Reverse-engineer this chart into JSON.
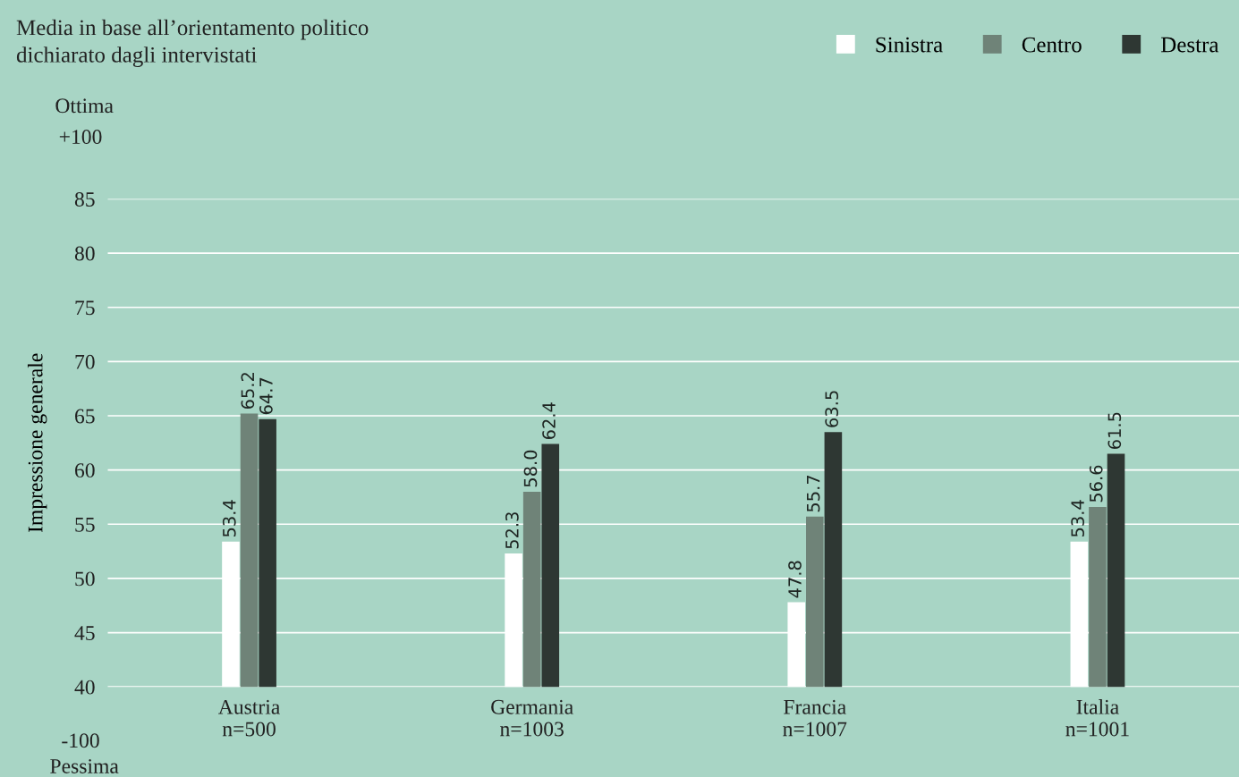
{
  "chart_data": {
    "type": "bar",
    "title": "Media in base all’orientamento politico",
    "subtitle": "dichiarato dagli intervistati",
    "ylabel": "Impressione generale",
    "categories": [
      "Austria\nn=500",
      "Germania\nn=1003",
      "Francia\nn=1007",
      "Italia\nn=1001"
    ],
    "series": [
      {
        "name": "Sinistra",
        "color": "#ffffff",
        "values": [
          53.4,
          52.3,
          47.8,
          53.4
        ],
        "value_labels": [
          "53.4",
          "52.3",
          "47.8",
          "53.4"
        ]
      },
      {
        "name": "Centro",
        "color": "#6f8378",
        "values": [
          65.2,
          58.0,
          55.7,
          56.6
        ],
        "value_labels": [
          "65.2",
          "58.0",
          "55.7",
          "56.6"
        ]
      },
      {
        "name": "Destra",
        "color": "#2e3733",
        "values": [
          64.7,
          62.4,
          63.5,
          61.5
        ],
        "value_labels": [
          "64.7",
          "62.4",
          "63.5",
          "61.5"
        ]
      }
    ],
    "ylim": [
      40,
      85
    ],
    "yticks": [
      40,
      45,
      50,
      55,
      60,
      65,
      70,
      75,
      80,
      85
    ],
    "grid": "y",
    "legend": "top right",
    "annotations": [
      "Ottima",
      "+100",
      "-100",
      "Pessima"
    ]
  }
}
